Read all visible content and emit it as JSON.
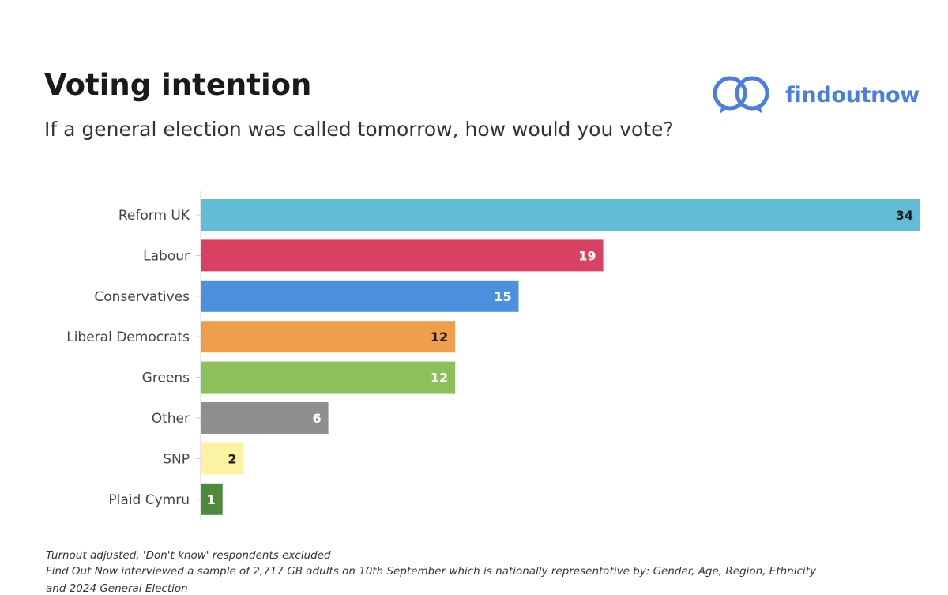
{
  "header": {
    "title": "Voting intention",
    "subtitle": "If a general election was called tomorrow, how would you vote?"
  },
  "brand": {
    "name": "findoutnow",
    "color": "#4a7fe0"
  },
  "chart_data": {
    "type": "bar",
    "orientation": "horizontal",
    "categories": [
      "Reform UK",
      "Labour",
      "Conservatives",
      "Liberal Democrats",
      "Greens",
      "Other",
      "SNP",
      "Plaid Cymru"
    ],
    "values": [
      34,
      19,
      15,
      12,
      12,
      6,
      2,
      1
    ],
    "colors": [
      "#62bcd6",
      "#d94163",
      "#4d91de",
      "#ef9f4b",
      "#8cc05a",
      "#8f8f8f",
      "#fbf3a3",
      "#4e8a3e"
    ],
    "label_colors": [
      "#1a1a1a",
      "#ffffff",
      "#ffffff",
      "#1a1a1a",
      "#ffffff",
      "#ffffff",
      "#1a1a1a",
      "#ffffff"
    ],
    "xlim": [
      0,
      34
    ],
    "grid": false,
    "title": "Voting intention"
  },
  "footnotes": [
    "Turnout adjusted, 'Don't know' respondents excluded",
    "Find Out Now interviewed a sample of 2,717 GB adults on 10th September which is nationally representative by: Gender, Age, Region, Ethnicity",
    "and 2024 General Election"
  ]
}
